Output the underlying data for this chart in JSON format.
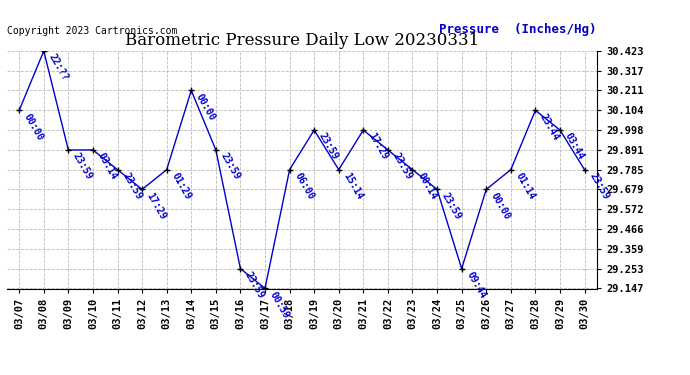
{
  "title": "Barometric Pressure Daily Low 20230331",
  "ylabel": "Pressure  (Inches/Hg)",
  "copyright": "Copyright 2023 Cartronics.com",
  "background_color": "#ffffff",
  "line_color": "#0000cc",
  "marker_color": "#000000",
  "grid_color": "#bbbbbb",
  "dates": [
    "03/07",
    "03/08",
    "03/09",
    "03/10",
    "03/11",
    "03/12",
    "03/13",
    "03/14",
    "03/15",
    "03/16",
    "03/17",
    "03/18",
    "03/19",
    "03/20",
    "03/21",
    "03/22",
    "03/23",
    "03/24",
    "03/25",
    "03/26",
    "03/27",
    "03/28",
    "03/29",
    "03/30"
  ],
  "values": [
    30.104,
    30.423,
    29.891,
    29.891,
    29.785,
    29.679,
    29.785,
    30.211,
    29.891,
    29.253,
    29.147,
    29.785,
    29.998,
    29.785,
    29.998,
    29.891,
    29.785,
    29.679,
    29.253,
    29.679,
    29.785,
    30.104,
    29.998,
    29.785
  ],
  "annotations": [
    "00:00",
    "22:??",
    "23:59",
    "03:14",
    "23:59",
    "17:29",
    "01:29",
    "00:00",
    "23:59",
    "23:59",
    "00:59",
    "06:00",
    "23:59",
    "15:14",
    "17:29",
    "23:59",
    "00:14",
    "23:59",
    "09:44",
    "00:00",
    "01:14",
    "23:44",
    "03:44",
    "23:59"
  ],
  "ylim_min": 29.147,
  "ylim_max": 30.423,
  "yticks": [
    29.147,
    29.253,
    29.359,
    29.466,
    29.572,
    29.679,
    29.785,
    29.891,
    29.998,
    30.104,
    30.211,
    30.317,
    30.423
  ],
  "title_fontsize": 12,
  "ylabel_fontsize": 9,
  "copyright_fontsize": 7,
  "tick_fontsize": 7.5,
  "annot_fontsize": 7
}
